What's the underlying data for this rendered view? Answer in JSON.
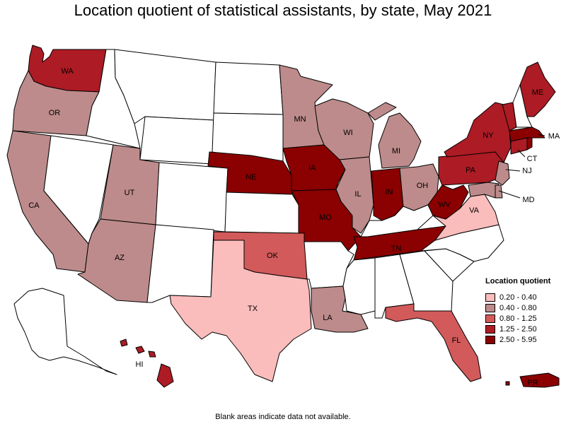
{
  "title": "Location quotient of statistical assistants, by state, May 2021",
  "footnote": "Blank areas indicate data not available.",
  "legend": {
    "title": "Location quotient",
    "bins": [
      {
        "label": "0.20 - 0.40",
        "color": "#fbbcbc"
      },
      {
        "label": "0.40 - 0.80",
        "color": "#bd8b8b"
      },
      {
        "label": "0.80 - 1.25",
        "color": "#d25a5a"
      },
      {
        "label": "1.25 - 2.50",
        "color": "#ad1b24"
      },
      {
        "label": "2.50 - 5.95",
        "color": "#8b0000"
      }
    ]
  },
  "colors": {
    "no_data": "#ffffff",
    "border": "#000000"
  },
  "states": {
    "WA": {
      "label": "WA",
      "bin": 3
    },
    "OR": {
      "label": "OR",
      "bin": 1
    },
    "CA": {
      "label": "CA",
      "bin": 1
    },
    "UT": {
      "label": "UT",
      "bin": 1
    },
    "AZ": {
      "label": "AZ",
      "bin": 1
    },
    "TX": {
      "label": "TX",
      "bin": 0
    },
    "OK": {
      "label": "OK",
      "bin": 2
    },
    "NE": {
      "label": "NE",
      "bin": 4
    },
    "IA": {
      "label": "IA",
      "bin": 4
    },
    "MO": {
      "label": "MO",
      "bin": 4
    },
    "MN": {
      "label": "MN",
      "bin": 1
    },
    "WI": {
      "label": "WI",
      "bin": 1
    },
    "IL": {
      "label": "IL",
      "bin": 1
    },
    "MI": {
      "label": "MI",
      "bin": 1
    },
    "IN": {
      "label": "IN",
      "bin": 4
    },
    "OH": {
      "label": "OH",
      "bin": 1
    },
    "TN": {
      "label": "TN",
      "bin": 4
    },
    "LA": {
      "label": "LA",
      "bin": 1
    },
    "FL": {
      "label": "FL",
      "bin": 2
    },
    "WV": {
      "label": "WV",
      "bin": 4
    },
    "VA": {
      "label": "VA",
      "bin": 0
    },
    "PA": {
      "label": "PA",
      "bin": 3
    },
    "NY": {
      "label": "NY",
      "bin": 3
    },
    "ME": {
      "label": "ME",
      "bin": 3
    },
    "MA": {
      "label": "MA",
      "bin": 4
    },
    "CT": {
      "label": "CT",
      "bin": 3
    },
    "NJ": {
      "label": "NJ",
      "bin": 1
    },
    "MD": {
      "label": "MD",
      "bin": 1
    },
    "DE": {
      "bin": 1
    },
    "RI": {
      "bin": 4
    },
    "VT": {
      "bin": 3
    },
    "HI": {
      "label": "HI",
      "bin": 3
    },
    "PR": {
      "label": "PR",
      "bin": 4
    },
    "MT": {
      "bin": null
    },
    "ID": {
      "bin": null
    },
    "WY": {
      "bin": null
    },
    "NV": {
      "bin": null
    },
    "CO": {
      "bin": null
    },
    "NM": {
      "bin": null
    },
    "ND": {
      "bin": null
    },
    "SD": {
      "bin": null
    },
    "KS": {
      "bin": null
    },
    "AR": {
      "bin": null
    },
    "MS": {
      "bin": null
    },
    "AL": {
      "bin": null
    },
    "GA": {
      "bin": null
    },
    "SC": {
      "bin": null
    },
    "NC": {
      "bin": null
    },
    "KY": {
      "bin": null
    },
    "NH": {
      "bin": null
    },
    "AK": {
      "bin": null
    }
  }
}
